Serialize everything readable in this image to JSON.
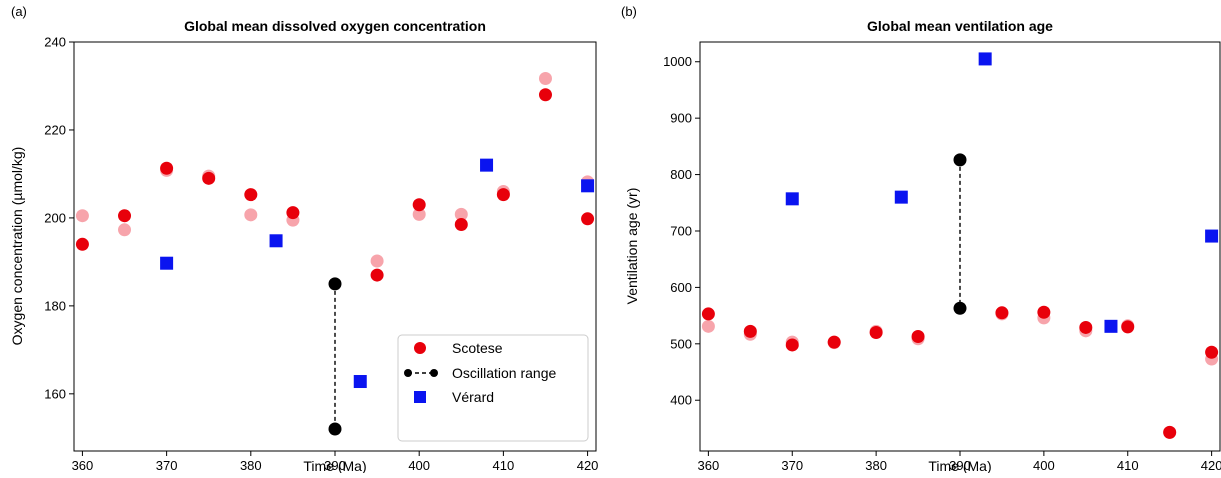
{
  "colors": {
    "scotese": "#e8000b",
    "scotese_faint": "#f7a4ab",
    "verard": "#0a14f0",
    "oscillation": "#000000"
  },
  "chart_data": [
    {
      "type": "scatter",
      "panel_label": "(a)",
      "title": "Global mean dissolved oxygen concentration",
      "xlabel": "Time (Ma)",
      "ylabel": "Oxygen concentration (µmol/kg)",
      "xlim": [
        359,
        421
      ],
      "ylim": [
        147,
        240
      ],
      "xticks": [
        360,
        370,
        380,
        390,
        400,
        410,
        420
      ],
      "yticks": [
        160,
        180,
        200,
        220,
        240
      ],
      "grid": false,
      "legend": {
        "placement": "lower-right",
        "entries": [
          "Scotese",
          "Oscillation range",
          "Vérard"
        ]
      },
      "series": [
        {
          "name": "Scotese",
          "marker": "circle",
          "color": "scotese",
          "points": [
            [
              360,
              194
            ],
            [
              365,
              200.5
            ],
            [
              370,
              211.3
            ],
            [
              375,
              209
            ],
            [
              380,
              205.3
            ],
            [
              385,
              201.2
            ],
            [
              395,
              187
            ],
            [
              400,
              203
            ],
            [
              405,
              198.5
            ],
            [
              410,
              205.3
            ],
            [
              415,
              228
            ],
            [
              420,
              199.8
            ]
          ]
        },
        {
          "name": "Scotese (faint)",
          "marker": "circle",
          "color": "scotese_faint",
          "points": [
            [
              360,
              200.5
            ],
            [
              365,
              197.3
            ],
            [
              370,
              210.8
            ],
            [
              375,
              209.5
            ],
            [
              380,
              200.7
            ],
            [
              385,
              199.5
            ],
            [
              395,
              190.2
            ],
            [
              400,
              200.8
            ],
            [
              405,
              200.8
            ],
            [
              410,
              206
            ],
            [
              415,
              231.7
            ],
            [
              420,
              208.2
            ]
          ]
        },
        {
          "name": "Oscillation range",
          "marker": "circle-dashed",
          "color": "oscillation",
          "points": [
            [
              390,
              185
            ],
            [
              390,
              152
            ]
          ]
        },
        {
          "name": "Vérard",
          "marker": "square",
          "color": "verard",
          "points": [
            [
              370,
              189.7
            ],
            [
              383,
              194.8
            ],
            [
              393,
              162.8
            ],
            [
              408,
              212
            ],
            [
              420,
              207.3
            ]
          ]
        }
      ]
    },
    {
      "type": "scatter",
      "panel_label": "(b)",
      "title": "Global mean ventilation age",
      "xlabel": "Time (Ma)",
      "ylabel": "Ventilation age (yr)",
      "xlim": [
        359,
        421
      ],
      "ylim": [
        310,
        1035
      ],
      "xticks": [
        360,
        370,
        380,
        390,
        400,
        410,
        420
      ],
      "yticks": [
        400,
        500,
        600,
        700,
        800,
        900,
        1000
      ],
      "grid": false,
      "series": [
        {
          "name": "Scotese",
          "marker": "circle",
          "color": "scotese",
          "points": [
            [
              360,
              553
            ],
            [
              365,
              522
            ],
            [
              370,
              498
            ],
            [
              375,
              503
            ],
            [
              380,
              520
            ],
            [
              385,
              513
            ],
            [
              395,
              555
            ],
            [
              400,
              556
            ],
            [
              405,
              529
            ],
            [
              410,
              530
            ],
            [
              415,
              343
            ],
            [
              420,
              485
            ]
          ]
        },
        {
          "name": "Scotese (faint)",
          "marker": "circle",
          "color": "scotese_faint",
          "points": [
            [
              360,
              531
            ],
            [
              365,
              517
            ],
            [
              370,
              503
            ],
            [
              375,
              502
            ],
            [
              380,
              522
            ],
            [
              385,
              509
            ],
            [
              395,
              553
            ],
            [
              400,
              546
            ],
            [
              405,
              523
            ],
            [
              410,
              532
            ],
            [
              415,
              343
            ],
            [
              420,
              473
            ]
          ]
        },
        {
          "name": "Oscillation range",
          "marker": "circle-dashed",
          "color": "oscillation",
          "points": [
            [
              390,
              826
            ],
            [
              390,
              563
            ]
          ]
        },
        {
          "name": "Vérard",
          "marker": "square",
          "color": "verard",
          "points": [
            [
              370,
              757
            ],
            [
              383,
              760
            ],
            [
              393,
              1005
            ],
            [
              408,
              531
            ],
            [
              420,
              691
            ]
          ]
        }
      ]
    }
  ]
}
